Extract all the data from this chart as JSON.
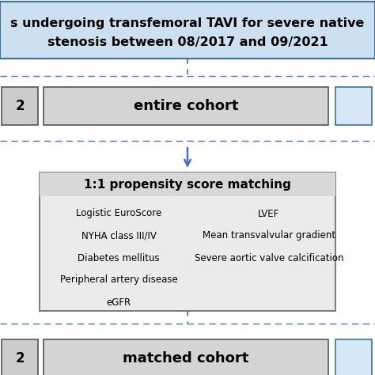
{
  "bg_color": "#ffffff",
  "title_box": {
    "text_line1": "s undergoing transfemoral TAVI for severe native",
    "text_line2": "stenosis between 08/2017 and 09/2021",
    "bg_color": "#cde0f0",
    "border_color": "#3a6fa8",
    "fontsize": 11.5,
    "fontweight": "bold"
  },
  "entire_cohort_box": {
    "text": "entire cohort",
    "bg_color": "#d4d4d4",
    "border_color": "#555555",
    "fontsize": 13,
    "fontweight": "bold"
  },
  "left_box_top": {
    "text": "2",
    "bg_color": "#cccccc",
    "border_color": "#555555",
    "fontsize": 12
  },
  "right_box_top": {
    "bg_color": "#d6e8f5",
    "border_color": "#3a6fa8"
  },
  "propensity_box": {
    "title": "1:1 propensity score matching",
    "left_items": [
      "Logistic EuroScore",
      "NYHA class III/IV",
      "Diabetes mellitus",
      "Peripheral artery disease",
      "eGFR"
    ],
    "right_items": [
      "LVEF",
      "Mean transvalvular gradient",
      "Severe aortic valve calcification"
    ],
    "bg_color": "#ebebeb",
    "border_color": "#666666",
    "title_fontsize": 11,
    "item_fontsize": 8.5,
    "fontweight_title": "bold"
  },
  "matched_cohort_box": {
    "text": "matched cohort",
    "bg_color": "#d4d4d4",
    "border_color": "#555555",
    "fontsize": 13,
    "fontweight": "bold"
  },
  "left_box_bottom": {
    "text": "2",
    "bg_color": "#cccccc",
    "border_color": "#555555",
    "fontsize": 12
  },
  "right_box_bottom": {
    "bg_color": "#d6e8f5",
    "border_color": "#3a6fa8"
  },
  "dashed_line_color": "#4472c4",
  "arrow_color": "#4472c4",
  "white_gap_color": "#ffffff"
}
